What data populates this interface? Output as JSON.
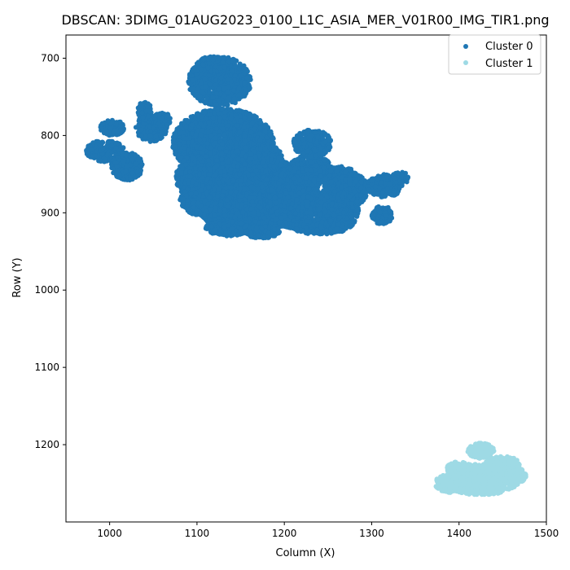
{
  "chart_data": {
    "type": "scatter",
    "title": "DBSCAN: 3DIMG_01AUG2023_0100_L1C_ASIA_MER_V01R00_IMG_TIR1.png",
    "xlabel": "Column (X)",
    "ylabel": "Row (Y)",
    "xlim": [
      950,
      1500
    ],
    "ylim": [
      1300,
      670
    ],
    "y_inverted": true,
    "xticks": [
      1000,
      1100,
      1200,
      1300,
      1400,
      1500
    ],
    "yticks": [
      700,
      800,
      900,
      1000,
      1100,
      1200
    ],
    "grid": false,
    "legend_position": "upper right",
    "series": [
      {
        "name": "Cluster 0",
        "color": "#1f77b4",
        "regions": [
          {
            "cx": 1126,
            "cy": 730,
            "rx": 36,
            "ry": 32
          },
          {
            "cx": 1118,
            "cy": 708,
            "rx": 18,
            "ry": 10
          },
          {
            "cx": 995,
            "cy": 820,
            "rx": 22,
            "ry": 14
          },
          {
            "cx": 1003,
            "cy": 790,
            "rx": 14,
            "ry": 10
          },
          {
            "cx": 1020,
            "cy": 840,
            "rx": 18,
            "ry": 18
          },
          {
            "cx": 1048,
            "cy": 790,
            "rx": 18,
            "ry": 18
          },
          {
            "cx": 1040,
            "cy": 768,
            "rx": 8,
            "ry": 12
          },
          {
            "cx": 1060,
            "cy": 780,
            "rx": 10,
            "ry": 10
          },
          {
            "cx": 1130,
            "cy": 810,
            "rx": 58,
            "ry": 45
          },
          {
            "cx": 1145,
            "cy": 855,
            "rx": 70,
            "ry": 35
          },
          {
            "cx": 1160,
            "cy": 900,
            "rx": 55,
            "ry": 25
          },
          {
            "cx": 1110,
            "cy": 880,
            "rx": 30,
            "ry": 25
          },
          {
            "cx": 1095,
            "cy": 845,
            "rx": 15,
            "ry": 20
          },
          {
            "cx": 1210,
            "cy": 880,
            "rx": 30,
            "ry": 40
          },
          {
            "cx": 1230,
            "cy": 845,
            "rx": 25,
            "ry": 20
          },
          {
            "cx": 1232,
            "cy": 810,
            "rx": 22,
            "ry": 18
          },
          {
            "cx": 1260,
            "cy": 895,
            "rx": 25,
            "ry": 30
          },
          {
            "cx": 1265,
            "cy": 860,
            "rx": 20,
            "ry": 20
          },
          {
            "cx": 1280,
            "cy": 870,
            "rx": 15,
            "ry": 20
          },
          {
            "cx": 1240,
            "cy": 918,
            "rx": 30,
            "ry": 10
          },
          {
            "cx": 1175,
            "cy": 925,
            "rx": 20,
            "ry": 8
          },
          {
            "cx": 1135,
            "cy": 920,
            "rx": 25,
            "ry": 10
          },
          {
            "cx": 1315,
            "cy": 865,
            "rx": 20,
            "ry": 15
          },
          {
            "cx": 1333,
            "cy": 855,
            "rx": 10,
            "ry": 8
          },
          {
            "cx": 1312,
            "cy": 903,
            "rx": 12,
            "ry": 12
          },
          {
            "cx": 1178,
            "cy": 830,
            "rx": 20,
            "ry": 18
          }
        ]
      },
      {
        "name": "Cluster 1",
        "color": "#9edae5",
        "regions": [
          {
            "cx": 1425,
            "cy": 1245,
            "rx": 45,
            "ry": 20
          },
          {
            "cx": 1390,
            "cy": 1250,
            "rx": 18,
            "ry": 12
          },
          {
            "cx": 1400,
            "cy": 1230,
            "rx": 15,
            "ry": 8
          },
          {
            "cx": 1425,
            "cy": 1208,
            "rx": 15,
            "ry": 10
          },
          {
            "cx": 1450,
            "cy": 1225,
            "rx": 20,
            "ry": 10
          },
          {
            "cx": 1465,
            "cy": 1240,
            "rx": 12,
            "ry": 10
          }
        ]
      }
    ]
  }
}
